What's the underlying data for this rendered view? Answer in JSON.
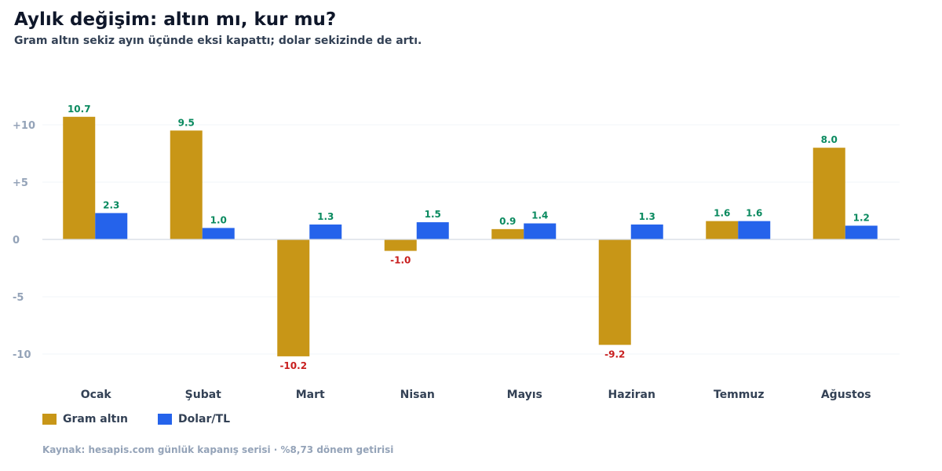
{
  "header": {
    "title": "Aylık değişim: altın mı, kur mu?",
    "subtitle": "Gram altın sekiz ayın üçünde eksi kapattı; dolar sekizinde de artı."
  },
  "footer": {
    "source": "Kaynak: hesapis.com günlük kapanış serisi · %8,73 dönem getirisi"
  },
  "colors": {
    "gold": "#c89617",
    "dollar": "#2563eb",
    "positive_label": "#0a8a5f",
    "negative_label": "#c81e1e",
    "grid": "#f1f5f9",
    "zero_line": "#d4dbe3"
  },
  "chart_data": {
    "type": "bar",
    "title": "Aylık değişim: altın mı, kur mu?",
    "subtitle": "Gram altın sekiz ayın üçünde eksi kapattı; dolar sekizinde de artı.",
    "categories": [
      "Ocak",
      "Şubat",
      "Mart",
      "Nisan",
      "Mayıs",
      "Haziran",
      "Temmuz",
      "Ağustos"
    ],
    "series": [
      {
        "name": "Gram altın",
        "color": "#c89617",
        "values": [
          10.7,
          9.5,
          -10.2,
          -1.0,
          0.9,
          -9.2,
          1.6,
          8.0
        ]
      },
      {
        "name": "Dolar/TL",
        "color": "#2563eb",
        "values": [
          2.3,
          1.0,
          1.3,
          1.5,
          1.4,
          1.3,
          1.6,
          1.2
        ]
      }
    ],
    "yticks": [
      {
        "value": 10,
        "label": "+10"
      },
      {
        "value": 5,
        "label": "+5"
      },
      {
        "value": 0,
        "label": "0"
      },
      {
        "value": -5,
        "label": "-5"
      },
      {
        "value": -10,
        "label": "-10"
      }
    ],
    "ylim": [
      -11.5,
      13
    ],
    "grid": true,
    "legend_position": "bottom-left",
    "data_labels": true
  }
}
